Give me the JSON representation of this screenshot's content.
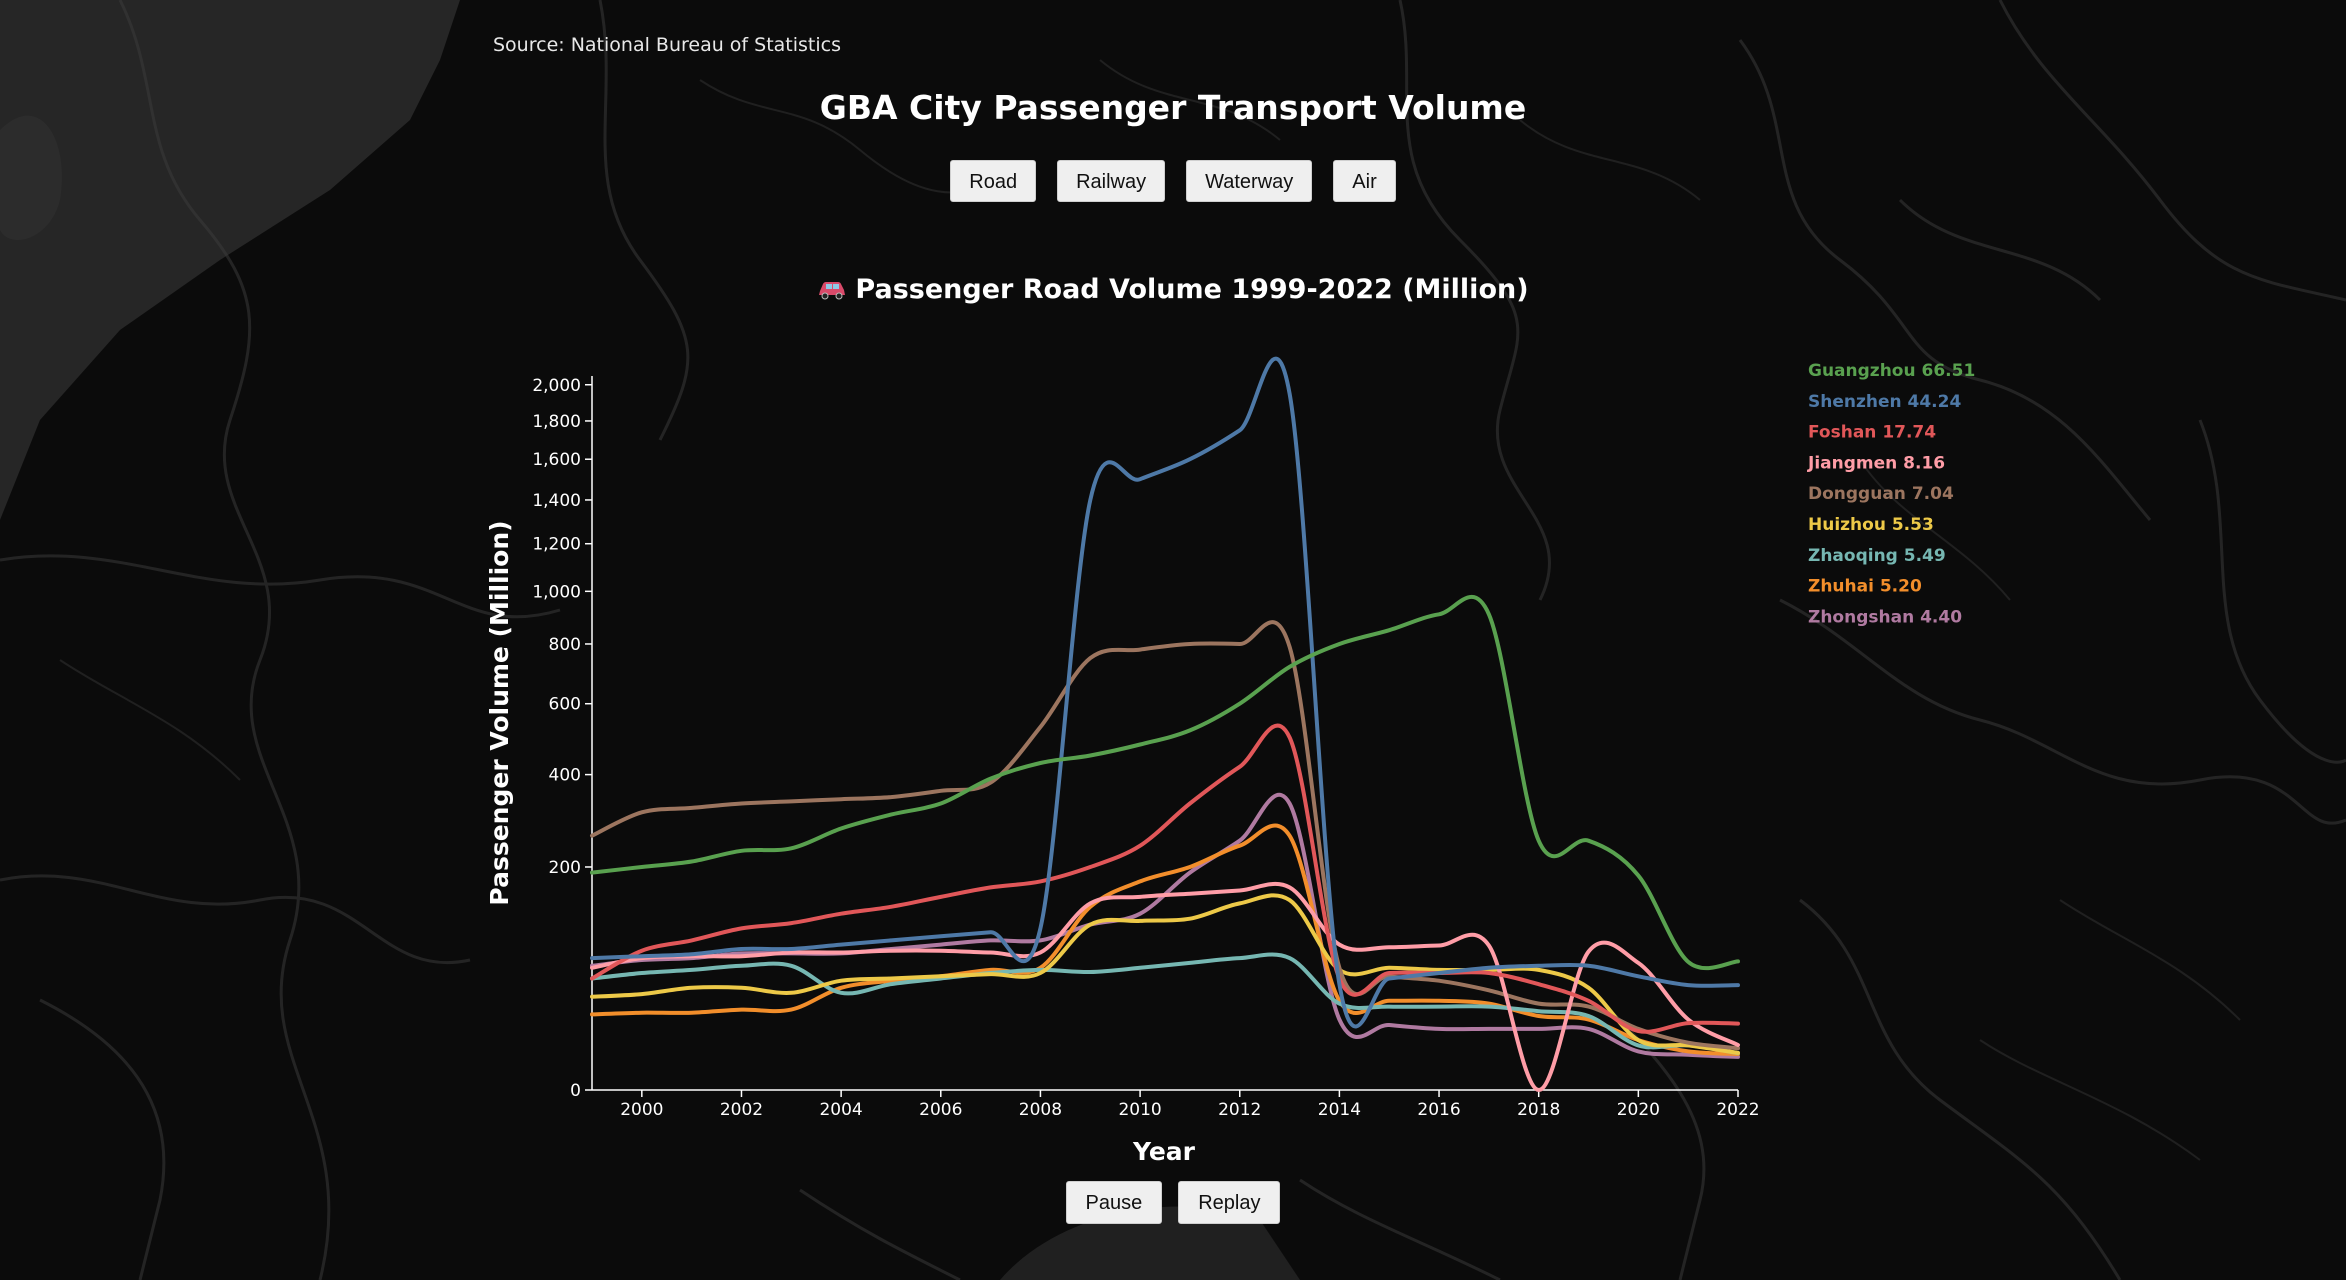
{
  "source": "Source: National Bureau of Statistics",
  "title": "GBA City Passenger Transport Volume",
  "tabs": [
    {
      "label": "Road"
    },
    {
      "label": "Railway"
    },
    {
      "label": "Waterway"
    },
    {
      "label": "Air"
    }
  ],
  "subtitle": "Passenger Road Volume 1999-2022 (Million)",
  "controls": {
    "pause_label": "Pause",
    "replay_label": "Replay"
  },
  "colors": {
    "background": "#0b0b0b",
    "map_lines": "#3a3a3a",
    "axis": "#ffffff",
    "button_bg": "#efefef"
  },
  "chart_data": {
    "type": "line",
    "x_scale": "linear",
    "y_scale": "sqrt",
    "xlabel": "Year",
    "ylabel": "Passenger Volume (Million)",
    "xlim": [
      1999,
      2022
    ],
    "ylim": [
      0,
      2050
    ],
    "x_ticks": [
      2000,
      2002,
      2004,
      2006,
      2008,
      2010,
      2012,
      2014,
      2016,
      2018,
      2020,
      2022
    ],
    "y_ticks": [
      0,
      200,
      400,
      600,
      800,
      1000,
      1200,
      1400,
      1600,
      1800,
      2000
    ],
    "y_tick_labels": [
      "0",
      "200",
      "400",
      "600",
      "800",
      "1,000",
      "1,200",
      "1,400",
      "1,600",
      "1,800",
      "2,000"
    ],
    "legend_position": "right",
    "x": [
      1999,
      2000,
      2001,
      2002,
      2003,
      2004,
      2005,
      2006,
      2007,
      2008,
      2009,
      2010,
      2011,
      2012,
      2013,
      2014,
      2015,
      2016,
      2017,
      2018,
      2019,
      2020,
      2021,
      2022
    ],
    "series": [
      {
        "name": "Guangzhou",
        "label": "Guangzhou 66.51",
        "color": "#59a14f",
        "values": [
          190,
          200,
          210,
          230,
          235,
          275,
          305,
          330,
          390,
          430,
          450,
          480,
          520,
          600,
          720,
          800,
          850,
          910,
          910,
          250,
          250,
          185,
          66,
          66.51
        ]
      },
      {
        "name": "Shenzhen",
        "label": "Shenzhen 44.24",
        "color": "#4e79a7",
        "values": [
          70,
          72,
          74,
          80,
          80,
          85,
          90,
          95,
          100,
          105,
          1400,
          1500,
          1600,
          1750,
          1950,
          45,
          50,
          55,
          60,
          62,
          62,
          52,
          44.24,
          44.24
        ]
      },
      {
        "name": "Foshan",
        "label": "Foshan 17.74",
        "color": "#e15759",
        "values": [
          50,
          78,
          90,
          105,
          112,
          125,
          135,
          150,
          165,
          175,
          200,
          240,
          330,
          420,
          500,
          50,
          55,
          55,
          55,
          45,
          32,
          14,
          18,
          17.74
        ]
      },
      {
        "name": "Jiangmen",
        "label": "Jiangmen 8.16",
        "color": "#ff9da7",
        "values": [
          60,
          70,
          72,
          72,
          76,
          76,
          78,
          78,
          76,
          76,
          140,
          150,
          155,
          160,
          165,
          85,
          82,
          84,
          84,
          0,
          77,
          65,
          20,
          8.16
        ]
      },
      {
        "name": "Dongguan",
        "label": "Dongguan 7.04",
        "color": "#9c755f",
        "values": [
          260,
          310,
          320,
          330,
          335,
          340,
          345,
          360,
          380,
          530,
          750,
          780,
          800,
          800,
          790,
          60,
          52,
          48,
          40,
          30,
          28,
          15,
          9,
          7.04
        ]
      },
      {
        "name": "Huizhou",
        "label": "Huizhou 5.53",
        "color": "#edc948",
        "values": [
          35,
          37,
          42,
          42,
          38,
          48,
          50,
          52,
          54,
          55,
          110,
          115,
          118,
          140,
          145,
          58,
          60,
          58,
          58,
          58,
          42,
          10,
          8,
          5.53
        ]
      },
      {
        "name": "Zhaoqing",
        "label": "Zhaoqing 5.49",
        "color": "#76b7b2",
        "values": [
          50,
          55,
          58,
          62,
          62,
          38,
          45,
          50,
          55,
          58,
          56,
          60,
          65,
          70,
          70,
          30,
          28,
          28,
          28,
          25,
          22,
          8,
          8,
          5.49
        ]
      },
      {
        "name": "Zhuhai",
        "label": "Zhuhai 5.20",
        "color": "#f28e2b",
        "values": [
          23,
          24,
          24,
          26,
          26,
          42,
          48,
          52,
          58,
          60,
          135,
          175,
          200,
          240,
          260,
          32,
          32,
          32,
          30,
          22,
          20,
          10,
          6,
          5.2
        ]
      },
      {
        "name": "Zhongshan",
        "label": "Zhongshan 4.40",
        "color": "#b07aa1",
        "values": [
          62,
          68,
          70,
          75,
          75,
          75,
          80,
          85,
          90,
          90,
          110,
          125,
          190,
          250,
          330,
          20,
          17,
          15,
          15,
          15,
          15,
          6,
          5,
          4.4
        ]
      }
    ]
  }
}
